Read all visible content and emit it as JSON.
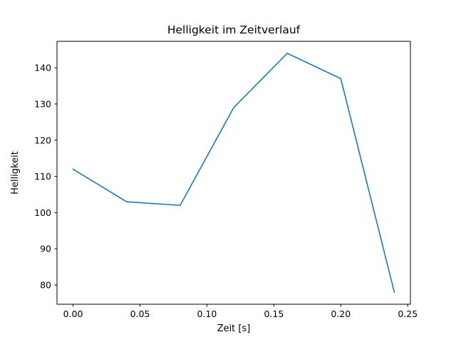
{
  "chart_data": {
    "type": "line",
    "title": "Helligkeit im Zeitverlauf",
    "xlabel": "Zeit [s]",
    "ylabel": "Helligkeit",
    "x": [
      0.0,
      0.04,
      0.08,
      0.12,
      0.16,
      0.2,
      0.24
    ],
    "series": [
      {
        "name": "Helligkeit",
        "values": [
          112,
          103,
          102,
          129,
          144,
          137,
          78
        ]
      }
    ],
    "xlim": [
      -0.012,
      0.252
    ],
    "ylim": [
      74.7,
      147.3
    ],
    "xticks": [
      0.0,
      0.05,
      0.1,
      0.15,
      0.2,
      0.25
    ],
    "xtick_labels": [
      "0.00",
      "0.05",
      "0.10",
      "0.15",
      "0.20",
      "0.25"
    ],
    "yticks": [
      80,
      90,
      100,
      110,
      120,
      130,
      140
    ],
    "ytick_labels": [
      "80",
      "90",
      "100",
      "110",
      "120",
      "130",
      "140"
    ],
    "line_color": "#1f77b4",
    "axis_color": "#000000",
    "background_color": "#ffffff",
    "grid": false,
    "legend_position": "none"
  }
}
